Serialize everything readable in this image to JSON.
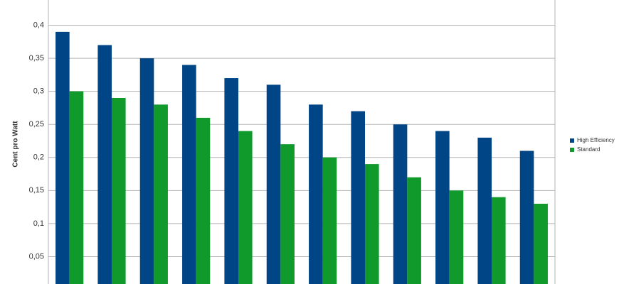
{
  "chart_data": {
    "type": "bar",
    "y_label": "Cent pro Watt",
    "categories": [
      null,
      null,
      null,
      null,
      null,
      null,
      null,
      null,
      null,
      null,
      null,
      null
    ],
    "series": [
      {
        "name": "High Efficiency",
        "color": "#004586",
        "values": [
          0.39,
          0.37,
          0.35,
          0.34,
          0.32,
          0.31,
          0.28,
          0.27,
          0.25,
          0.24,
          0.23,
          0.21
        ]
      },
      {
        "name": "Standard",
        "color": "#109a2c",
        "values": [
          0.3,
          0.29,
          0.28,
          0.26,
          0.24,
          0.22,
          0.2,
          0.19,
          0.17,
          0.15,
          0.14,
          0.13
        ]
      }
    ],
    "ylim": [
      0,
      0.45
    ],
    "yticks": [
      {
        "value": 0.05,
        "label": "0,05"
      },
      {
        "value": 0.1,
        "label": "0,1"
      },
      {
        "value": 0.15,
        "label": "0,15"
      },
      {
        "value": 0.2,
        "label": "0,2"
      },
      {
        "value": 0.25,
        "label": "0,25"
      },
      {
        "value": 0.3,
        "label": "0,3"
      },
      {
        "value": 0.35,
        "label": "0,35"
      },
      {
        "value": 0.4,
        "label": "0,4"
      }
    ],
    "grid": true,
    "legend": "right"
  }
}
